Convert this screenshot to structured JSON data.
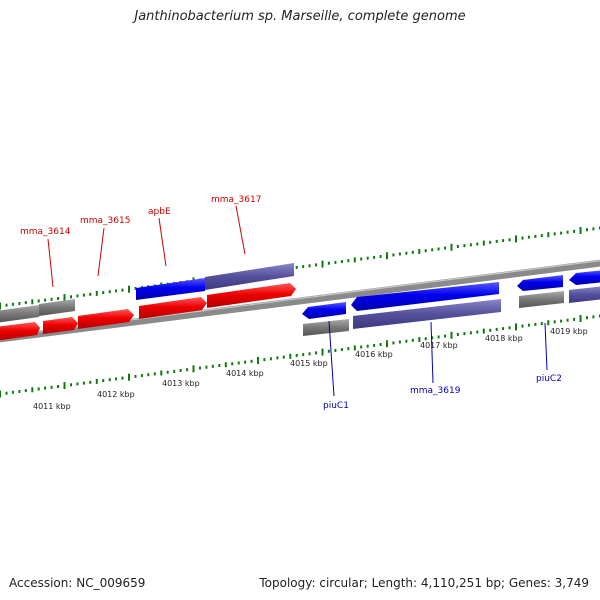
{
  "title": "Janthinobacterium sp. Marseille, complete genome",
  "footer": {
    "accession": "Accession: NC_009659",
    "summary": "Topology: circular; Length: 4,110,251 bp; Genes: 3,749"
  },
  "colors": {
    "forward_label": "#cc0000",
    "reverse_label": "#0000bb",
    "tick": "#117711",
    "backbone": "#8a8a8a"
  },
  "kbp_labels": [
    "4011 kbp",
    "4012 kbp",
    "4013 kbp",
    "4014 kbp",
    "4015 kbp",
    "4016 kbp",
    "4017 kbp",
    "4018 kbp",
    "4019 kbp"
  ],
  "feature_labels": [
    {
      "text": "mma_3614",
      "strand": "forward"
    },
    {
      "text": "mma_3615",
      "strand": "forward"
    },
    {
      "text": "apbE",
      "strand": "forward"
    },
    {
      "text": "mma_3617",
      "strand": "forward"
    },
    {
      "text": "piuC1",
      "strand": "reverse"
    },
    {
      "text": "mma_3619",
      "strand": "reverse"
    },
    {
      "text": "piuC2",
      "strand": "reverse"
    }
  ]
}
